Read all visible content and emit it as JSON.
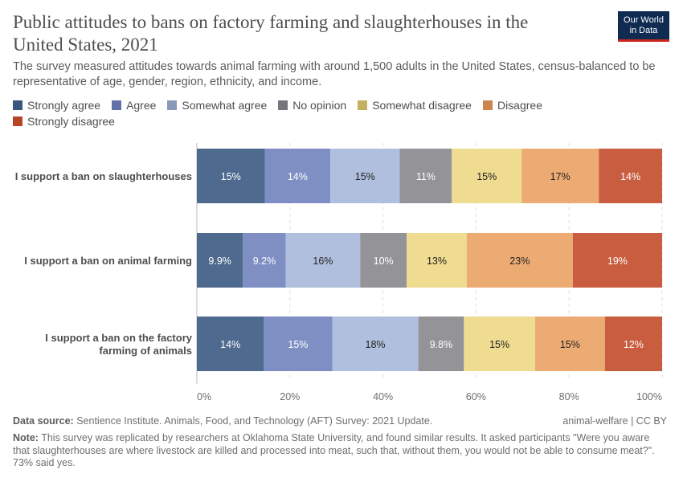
{
  "title": "Public attitudes to bans on factory farming and slaughterhouses in the United States, 2021",
  "subtitle": "The survey measured attitudes towards animal farming with around 1,500 adults in the United States, census-balanced to be representative of age, gender, region, ethnicity, and income.",
  "logo": {
    "line1": "Our World",
    "line2": "in Data"
  },
  "chart_data": {
    "type": "bar",
    "orientation": "horizontal",
    "stacked": true,
    "categories": [
      "I support a ban on slaughterhouses",
      "I support a ban on animal farming",
      "I support a ban on the factory farming of animals"
    ],
    "category_lines": [
      [
        "I support a ban on slaughterhouses"
      ],
      [
        "I support a ban on animal farming"
      ],
      [
        "I support a ban on the factory",
        "farming of animals"
      ]
    ],
    "xlim": [
      0,
      100
    ],
    "xticks": [
      "0%",
      "20%",
      "40%",
      "60%",
      "80%",
      "100%"
    ],
    "grid": "vertical dashed",
    "legend_position": "top",
    "series": [
      {
        "name": "Strongly agree",
        "color": "#4f6a8f",
        "values": [
          14.6,
          9.9,
          14.4
        ],
        "labels": [
          "15%",
          "9.9%",
          "14%"
        ]
      },
      {
        "name": "Agree",
        "color": "#7f8fc4",
        "values": [
          14.1,
          9.2,
          14.7
        ],
        "labels": [
          "14%",
          "9.2%",
          "15%"
        ]
      },
      {
        "name": "Somewhat agree",
        "color": "#b0bfde",
        "values": [
          14.9,
          16.0,
          18.5
        ],
        "labels": [
          "15%",
          "16%",
          "18%"
        ]
      },
      {
        "name": "No opinion",
        "color": "#949398",
        "values": [
          11.2,
          10.0,
          9.8
        ],
        "labels": [
          "11%",
          "10%",
          "9.8%"
        ]
      },
      {
        "name": "Somewhat disagree",
        "color": "#efdc90",
        "values": [
          15.0,
          12.9,
          15.3
        ],
        "labels": [
          "15%",
          "13%",
          "15%"
        ]
      },
      {
        "name": "Disagree",
        "color": "#edab74",
        "values": [
          16.6,
          22.8,
          15.0
        ],
        "labels": [
          "17%",
          "23%",
          "15%"
        ]
      },
      {
        "name": "Strongly disagree",
        "color": "#c95d3f",
        "values": [
          13.6,
          19.2,
          12.3
        ],
        "labels": [
          "14%",
          "19%",
          "12%"
        ]
      }
    ],
    "label_colors": [
      "#ffffff",
      "#ffffff",
      "#222222",
      "#ffffff",
      "#222222",
      "#222222",
      "#ffffff"
    ]
  },
  "footer": {
    "source_label": "Data source:",
    "source": "Sentience Institute. Animals, Food, and Technology (AFT) Survey: 2021 Update.",
    "license": "animal-welfare | CC BY",
    "note_label": "Note:",
    "note": "This survey was replicated by researchers at Oklahoma State University, and found similar results. It asked participants \"Were you aware that slaughterhouses are where livestock are killed and processed into meat, such that, without them, you would not be able to consume meat?\". 73% said yes."
  }
}
